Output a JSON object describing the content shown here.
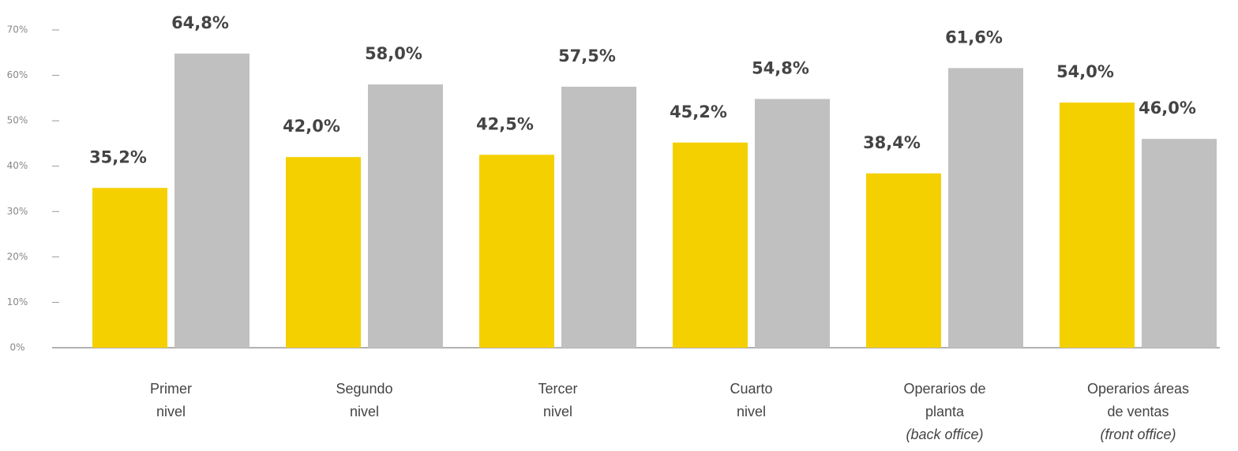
{
  "chart_data": {
    "type": "bar",
    "categories": [
      [
        "Primer",
        "nivel"
      ],
      [
        "Segundo",
        "nivel"
      ],
      [
        "Tercer",
        "nivel"
      ],
      [
        "Cuarto",
        "nivel"
      ],
      [
        "Operarios de",
        "planta",
        "(back office)"
      ],
      [
        "Operarios áreas",
        "de ventas",
        "(front office)"
      ]
    ],
    "series": [
      {
        "color": "#f5d000",
        "values": [
          35.2,
          42.0,
          42.5,
          45.2,
          38.4,
          54.0
        ],
        "value_labels": [
          "35,2%",
          "42,0%",
          "42,5%",
          "45,2%",
          "38,4%",
          "54,0%"
        ]
      },
      {
        "color": "#c0c0c0",
        "values": [
          64.8,
          58.0,
          57.5,
          54.8,
          61.6,
          46.0
        ],
        "value_labels": [
          "64,8%",
          "58,0%",
          "57,5%",
          "54,8%",
          "61,6%",
          "46,0%"
        ]
      }
    ],
    "ylim": [
      0,
      70
    ],
    "yticks": [
      {
        "value": 0,
        "label": "0%"
      },
      {
        "value": 10,
        "label": "10%"
      },
      {
        "value": 20,
        "label": "20%"
      },
      {
        "value": 30,
        "label": "30%"
      },
      {
        "value": 40,
        "label": "40%"
      },
      {
        "value": 50,
        "label": "50%"
      },
      {
        "value": 60,
        "label": "60%"
      },
      {
        "value": 70,
        "label": "70%"
      }
    ]
  }
}
